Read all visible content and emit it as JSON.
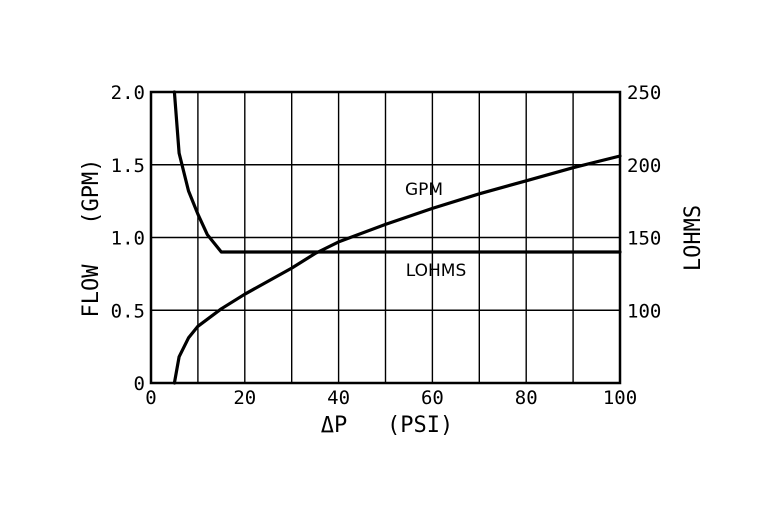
{
  "chart_data": {
    "type": "line",
    "xlabel": "ΔP   (PSI)",
    "ylabel": "FLOW   (GPM)",
    "y2label": "LOHMS",
    "xlim": [
      0,
      100
    ],
    "ylim": [
      0,
      2.0
    ],
    "y2lim": [
      50,
      250
    ],
    "grid": true,
    "x_ticks": [
      "0",
      "20",
      "40",
      "60",
      "80",
      "100"
    ],
    "y_ticks": [
      "0",
      "0.5",
      "1.0",
      "1.5",
      "2.0"
    ],
    "y2_ticks": [
      "100",
      "150",
      "200",
      "250"
    ],
    "series": [
      {
        "name": "GPM",
        "axis": "left",
        "x": [
          5,
          6,
          8,
          10,
          15,
          20,
          25,
          30,
          35,
          40,
          50,
          60,
          70,
          80,
          90,
          100
        ],
        "y": [
          0,
          0.18,
          0.31,
          0.39,
          0.51,
          0.61,
          0.7,
          0.79,
          0.89,
          0.97,
          1.09,
          1.2,
          1.3,
          1.39,
          1.48,
          1.56
        ]
      },
      {
        "name": "LOHMS",
        "axis": "right",
        "x": [
          5,
          6,
          8,
          10,
          12,
          15,
          20,
          40,
          60,
          80,
          100
        ],
        "y": [
          250,
          208,
          182,
          166,
          152,
          140,
          140,
          140,
          140,
          140,
          140
        ]
      }
    ]
  }
}
